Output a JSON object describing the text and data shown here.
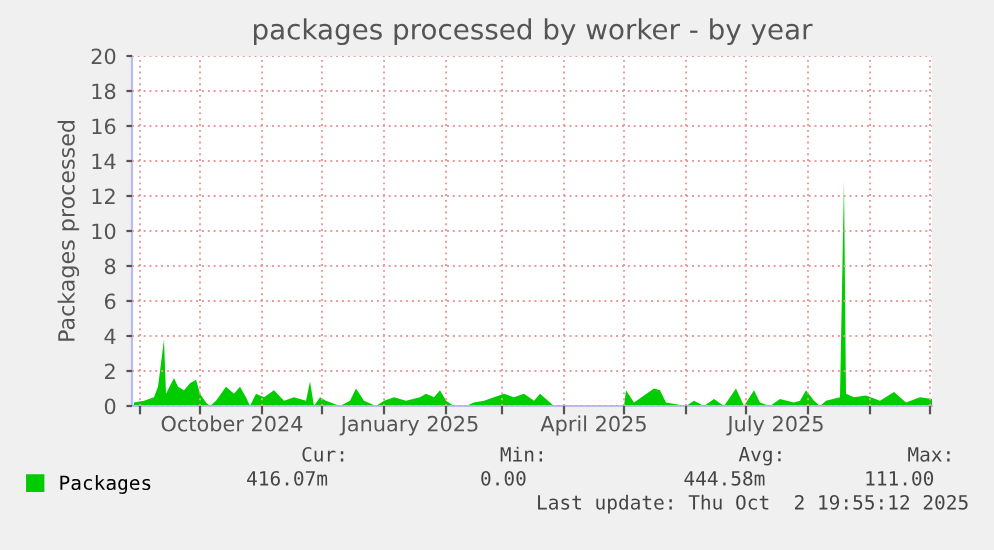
{
  "chart_data": {
    "type": "area",
    "title": "packages processed by worker - by year",
    "ylabel": "Packages processed",
    "x": [
      "2024-08-29",
      "2024-09-03",
      "2024-09-08",
      "2024-09-10",
      "2024-09-13",
      "2024-09-14",
      "2024-09-18",
      "2024-09-20",
      "2024-09-23",
      "2024-09-26",
      "2024-09-29",
      "2024-10-01",
      "2024-10-04",
      "2024-10-06",
      "2024-10-09",
      "2024-10-14",
      "2024-10-18",
      "2024-10-21",
      "2024-10-24",
      "2024-10-26",
      "2024-10-29",
      "2024-11-02",
      "2024-11-07",
      "2024-11-12",
      "2024-11-17",
      "2024-11-23",
      "2024-11-25",
      "2024-11-27",
      "2024-11-30",
      "2024-12-03",
      "2024-12-10",
      "2024-12-15",
      "2024-12-18",
      "2024-12-22",
      "2024-12-28",
      "2025-01-01",
      "2025-01-06",
      "2025-01-12",
      "2025-01-19",
      "2025-01-22",
      "2025-01-26",
      "2025-01-29",
      "2025-02-01",
      "2025-02-05",
      "2025-02-11",
      "2025-02-15",
      "2025-02-20",
      "2025-02-25",
      "2025-03-02",
      "2025-03-07",
      "2025-03-12",
      "2025-03-17",
      "2025-03-20",
      "2025-03-25",
      "2025-03-27",
      "2025-05-01",
      "2025-05-02",
      "2025-05-06",
      "2025-05-16",
      "2025-05-19",
      "2025-05-22",
      "2025-06-01",
      "2025-06-05",
      "2025-06-10",
      "2025-06-15",
      "2025-06-20",
      "2025-06-26",
      "2025-06-30",
      "2025-07-05",
      "2025-07-08",
      "2025-07-13",
      "2025-07-18",
      "2025-07-25",
      "2025-07-28",
      "2025-07-31",
      "2025-08-04",
      "2025-08-07",
      "2025-08-10",
      "2025-08-17",
      "2025-08-19",
      "2025-08-20",
      "2025-08-24",
      "2025-08-30",
      "2025-09-06",
      "2025-09-13",
      "2025-09-19",
      "2025-09-26",
      "2025-10-02"
    ],
    "series": [
      {
        "name": "Packages",
        "color": "#00cc00",
        "values": [
          0.2,
          0.3,
          0.5,
          1.1,
          3.8,
          0.7,
          1.6,
          1.1,
          0.9,
          1.3,
          1.5,
          0.7,
          0.2,
          0,
          0.3,
          1.1,
          0.7,
          1.1,
          0.5,
          0,
          0.7,
          0.5,
          0.9,
          0.3,
          0.5,
          0.3,
          1.4,
          0,
          0.5,
          0.3,
          0,
          0.3,
          1.0,
          0.3,
          0,
          0.3,
          0.5,
          0.3,
          0.5,
          0.7,
          0.5,
          0.9,
          0.3,
          0,
          0,
          0.2,
          0.3,
          0.5,
          0.7,
          0.5,
          0.7,
          0.3,
          0.7,
          0.2,
          0,
          0,
          0.9,
          0.2,
          1.0,
          0.9,
          0.2,
          0,
          0.3,
          0,
          0.4,
          0,
          1.0,
          0,
          0.9,
          0.2,
          0,
          0.4,
          0.2,
          0.3,
          0.9,
          0.3,
          0,
          0.3,
          0.5,
          12.9,
          0.7,
          0.5,
          0.6,
          0.3,
          0.8,
          0.2,
          0.5,
          0.4
        ]
      }
    ],
    "xlim": [
      "2024-08-28",
      "2025-10-02"
    ],
    "xticks": [
      {
        "value": "2024-09-01",
        "label": null
      },
      {
        "value": "2024-10-01",
        "label": null
      },
      {
        "value": "2024-11-01",
        "label": null
      },
      {
        "value": "2024-12-01",
        "label": null
      },
      {
        "value": "2025-01-01",
        "label": null
      },
      {
        "value": "2025-02-01",
        "label": null
      },
      {
        "value": "2025-03-01",
        "label": null
      },
      {
        "value": "2025-04-01",
        "label": null
      },
      {
        "value": "2025-05-01",
        "label": null
      },
      {
        "value": "2025-06-01",
        "label": null
      },
      {
        "value": "2025-07-01",
        "label": null
      },
      {
        "value": "2025-08-01",
        "label": null
      },
      {
        "value": "2025-09-01",
        "label": null
      },
      {
        "value": "2025-10-01",
        "label": null
      },
      {
        "value": "2024-10-17",
        "label": "October 2024"
      },
      {
        "value": "2025-01-14",
        "label": "January 2025"
      },
      {
        "value": "2025-04-16",
        "label": "April 2025"
      },
      {
        "value": "2025-07-16",
        "label": "July 2025"
      }
    ],
    "ylim": [
      0,
      20
    ],
    "yticks": [
      0,
      2,
      4,
      6,
      8,
      10,
      12,
      14,
      16,
      18,
      20
    ],
    "grid": true,
    "legend": "bottom left",
    "annotations": [
      "Cur:",
      "Min:",
      "Avg:",
      "Max:",
      "416.07m",
      "0.00",
      "444.58m",
      "111.00",
      "Last update: Thu Oct  2 19:55:12 2025"
    ]
  }
}
